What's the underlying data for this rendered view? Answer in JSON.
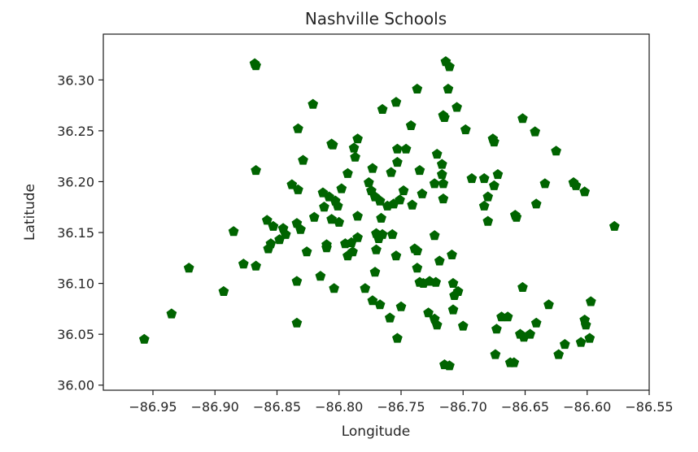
{
  "chart_data": {
    "type": "scatter",
    "title": "Nashville Schools",
    "xlabel": "Longitude",
    "ylabel": "Latitude",
    "xlim": [
      -86.99,
      -86.55
    ],
    "ylim": [
      35.995,
      36.345
    ],
    "xticks": [
      -86.95,
      -86.9,
      -86.85,
      -86.8,
      -86.75,
      -86.7,
      -86.65,
      -86.6,
      -86.55
    ],
    "xtick_labels": [
      "−86.95",
      "−86.90",
      "−86.85",
      "−86.80",
      "−86.75",
      "−86.70",
      "−86.65",
      "−86.60",
      "−86.55"
    ],
    "yticks": [
      36.0,
      36.05,
      36.1,
      36.15,
      36.2,
      36.25,
      36.3
    ],
    "ytick_labels": [
      "36.00",
      "36.05",
      "36.10",
      "36.15",
      "36.20",
      "36.25",
      "36.30"
    ],
    "grid": false,
    "marker": "pentagon",
    "marker_color": "#006400",
    "points": [
      [
        -86.868,
        36.316
      ],
      [
        -86.867,
        36.314
      ],
      [
        -86.714,
        36.318
      ],
      [
        -86.711,
        36.313
      ],
      [
        -86.821,
        36.276
      ],
      [
        -86.754,
        36.278
      ],
      [
        -86.765,
        36.271
      ],
      [
        -86.737,
        36.291
      ],
      [
        -86.712,
        36.291
      ],
      [
        -86.705,
        36.273
      ],
      [
        -86.716,
        36.265
      ],
      [
        -86.715,
        36.263
      ],
      [
        -86.833,
        36.252
      ],
      [
        -86.806,
        36.237
      ],
      [
        -86.805,
        36.236
      ],
      [
        -86.785,
        36.242
      ],
      [
        -86.788,
        36.233
      ],
      [
        -86.742,
        36.255
      ],
      [
        -86.753,
        36.232
      ],
      [
        -86.746,
        36.232
      ],
      [
        -86.787,
        36.224
      ],
      [
        -86.753,
        36.219
      ],
      [
        -86.698,
        36.251
      ],
      [
        -86.676,
        36.242
      ],
      [
        -86.675,
        36.239
      ],
      [
        -86.652,
        36.262
      ],
      [
        -86.642,
        36.249
      ],
      [
        -86.625,
        36.23
      ],
      [
        -86.867,
        36.211
      ],
      [
        -86.829,
        36.221
      ],
      [
        -86.793,
        36.208
      ],
      [
        -86.773,
        36.213
      ],
      [
        -86.758,
        36.209
      ],
      [
        -86.735,
        36.211
      ],
      [
        -86.721,
        36.227
      ],
      [
        -86.717,
        36.217
      ],
      [
        -86.693,
        36.203
      ],
      [
        -86.683,
        36.203
      ],
      [
        -86.838,
        36.197
      ],
      [
        -86.833,
        36.192
      ],
      [
        -86.813,
        36.189
      ],
      [
        -86.808,
        36.185
      ],
      [
        -86.803,
        36.181
      ],
      [
        -86.798,
        36.193
      ],
      [
        -86.801,
        36.176
      ],
      [
        -86.812,
        36.175
      ],
      [
        -86.776,
        36.199
      ],
      [
        -86.774,
        36.191
      ],
      [
        -86.771,
        36.185
      ],
      [
        -86.767,
        36.181
      ],
      [
        -86.761,
        36.176
      ],
      [
        -86.756,
        36.178
      ],
      [
        -86.751,
        36.182
      ],
      [
        -86.748,
        36.191
      ],
      [
        -86.741,
        36.177
      ],
      [
        -86.733,
        36.188
      ],
      [
        -86.717,
        36.207
      ],
      [
        -86.723,
        36.198
      ],
      [
        -86.716,
        36.198
      ],
      [
        -86.716,
        36.183
      ],
      [
        -86.675,
        36.196
      ],
      [
        -86.68,
        36.185
      ],
      [
        -86.683,
        36.176
      ],
      [
        -86.672,
        36.207
      ],
      [
        -86.634,
        36.198
      ],
      [
        -86.611,
        36.199
      ],
      [
        -86.609,
        36.196
      ],
      [
        -86.602,
        36.19
      ],
      [
        -86.641,
        36.178
      ],
      [
        -86.658,
        36.167
      ],
      [
        -86.657,
        36.165
      ],
      [
        -86.68,
        36.161
      ],
      [
        -86.858,
        36.162
      ],
      [
        -86.853,
        36.156
      ],
      [
        -86.845,
        36.154
      ],
      [
        -86.843,
        36.148
      ],
      [
        -86.848,
        36.143
      ],
      [
        -86.855,
        36.139
      ],
      [
        -86.857,
        36.134
      ],
      [
        -86.834,
        36.159
      ],
      [
        -86.831,
        36.153
      ],
      [
        -86.82,
        36.165
      ],
      [
        -86.806,
        36.163
      ],
      [
        -86.8,
        36.16
      ],
      [
        -86.785,
        36.166
      ],
      [
        -86.766,
        36.164
      ],
      [
        -86.77,
        36.149
      ],
      [
        -86.765,
        36.148
      ],
      [
        -86.757,
        36.148
      ],
      [
        -86.768,
        36.144
      ],
      [
        -86.785,
        36.145
      ],
      [
        -86.79,
        36.14
      ],
      [
        -86.795,
        36.139
      ],
      [
        -86.789,
        36.131
      ],
      [
        -86.793,
        36.127
      ],
      [
        -86.77,
        36.133
      ],
      [
        -86.754,
        36.127
      ],
      [
        -86.739,
        36.134
      ],
      [
        -86.737,
        36.132
      ],
      [
        -86.723,
        36.147
      ],
      [
        -86.709,
        36.128
      ],
      [
        -86.719,
        36.122
      ],
      [
        -86.885,
        36.151
      ],
      [
        -86.826,
        36.131
      ],
      [
        -86.81,
        36.138
      ],
      [
        -86.81,
        36.135
      ],
      [
        -86.578,
        36.156
      ],
      [
        -86.921,
        36.115
      ],
      [
        -86.877,
        36.119
      ],
      [
        -86.867,
        36.117
      ],
      [
        -86.893,
        36.092
      ],
      [
        -86.834,
        36.102
      ],
      [
        -86.815,
        36.107
      ],
      [
        -86.804,
        36.095
      ],
      [
        -86.779,
        36.095
      ],
      [
        -86.771,
        36.111
      ],
      [
        -86.737,
        36.115
      ],
      [
        -86.735,
        36.101
      ],
      [
        -86.727,
        36.102
      ],
      [
        -86.722,
        36.101
      ],
      [
        -86.708,
        36.1
      ],
      [
        -86.707,
        36.088
      ],
      [
        -86.704,
        36.092
      ],
      [
        -86.708,
        36.074
      ],
      [
        -86.773,
        36.083
      ],
      [
        -86.767,
        36.079
      ],
      [
        -86.75,
        36.077
      ],
      [
        -86.759,
        36.066
      ],
      [
        -86.732,
        36.1
      ],
      [
        -86.728,
        36.071
      ],
      [
        -86.723,
        36.065
      ],
      [
        -86.721,
        36.059
      ],
      [
        -86.7,
        36.058
      ],
      [
        -86.935,
        36.07
      ],
      [
        -86.957,
        36.045
      ],
      [
        -86.834,
        36.061
      ],
      [
        -86.753,
        36.046
      ],
      [
        -86.652,
        36.096
      ],
      [
        -86.631,
        36.079
      ],
      [
        -86.669,
        36.067
      ],
      [
        -86.664,
        36.067
      ],
      [
        -86.673,
        36.055
      ],
      [
        -86.641,
        36.061
      ],
      [
        -86.654,
        36.05
      ],
      [
        -86.651,
        36.047
      ],
      [
        -86.646,
        36.05
      ],
      [
        -86.602,
        36.064
      ],
      [
        -86.597,
        36.082
      ],
      [
        -86.601,
        36.059
      ],
      [
        -86.598,
        36.046
      ],
      [
        -86.605,
        36.042
      ],
      [
        -86.618,
        36.04
      ],
      [
        -86.623,
        36.03
      ],
      [
        -86.674,
        36.03
      ],
      [
        -86.659,
        36.022
      ],
      [
        -86.662,
        36.022
      ],
      [
        -86.715,
        36.02
      ],
      [
        -86.711,
        36.019
      ]
    ]
  }
}
